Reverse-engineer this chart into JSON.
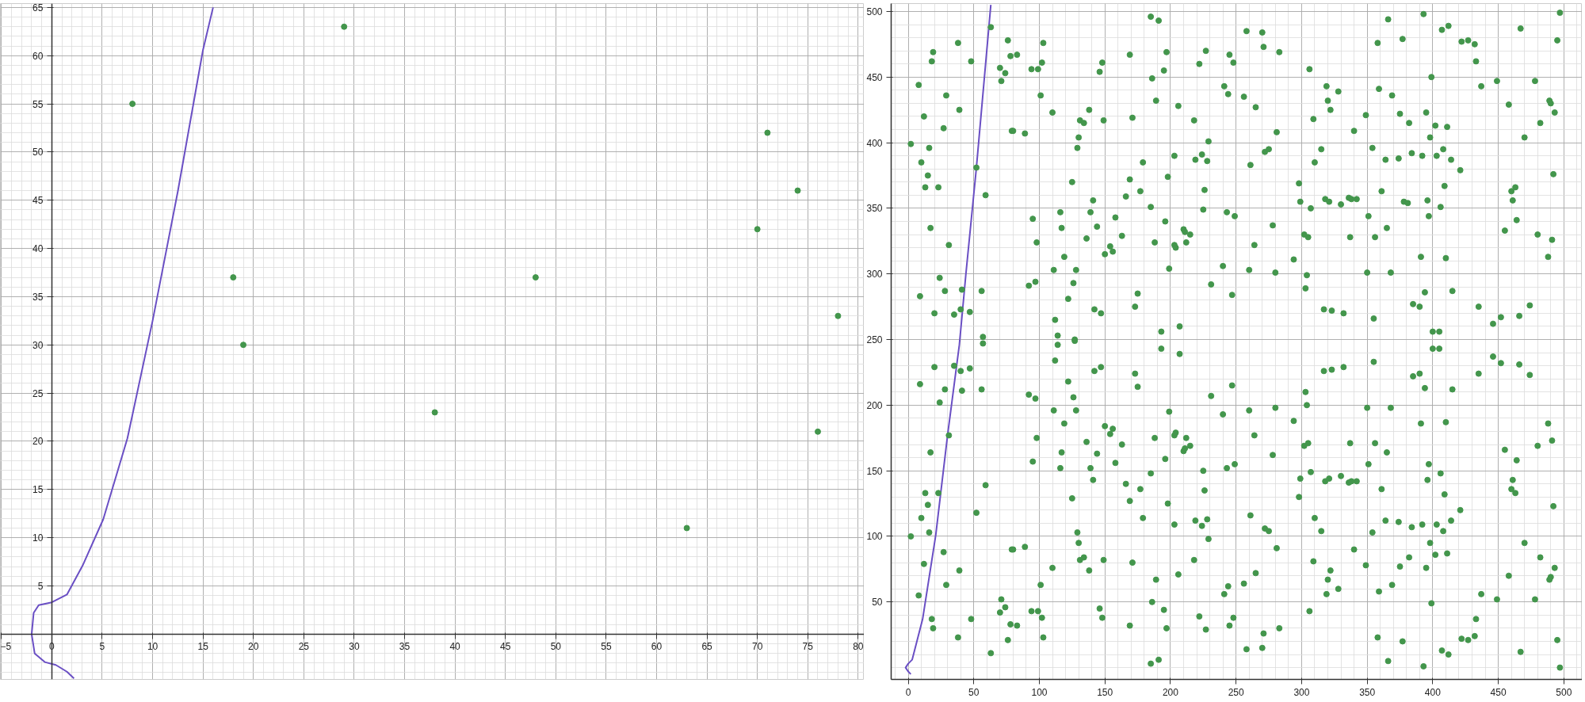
{
  "chart_data": [
    {
      "type": "scatter",
      "xlim": [
        -5.1,
        80.6
      ],
      "ylim": [
        -4.7,
        65.4
      ],
      "xticks": [
        -5,
        0,
        5,
        10,
        15,
        20,
        25,
        30,
        35,
        40,
        45,
        50,
        55,
        60,
        65,
        70,
        75,
        80
      ],
      "yticks": [
        5,
        10,
        15,
        20,
        25,
        30,
        35,
        40,
        45,
        50,
        55,
        60,
        65
      ],
      "grid": true,
      "series": [
        {
          "marker": "circle",
          "color": "#43964c",
          "x": [
            8,
            18,
            19,
            29,
            38,
            48,
            63,
            70,
            71,
            74,
            76,
            78
          ],
          "values": [
            55,
            37,
            30,
            63,
            23,
            37,
            11,
            42,
            52,
            46,
            21,
            33
          ]
        },
        {
          "type": "line",
          "color": "#6a4fc4",
          "x": [
            2.2,
            1.5,
            0.4,
            -0.7,
            -1.7,
            -2.0,
            -1.8,
            -1.3,
            0,
            1.5,
            3.1,
            5.1,
            7.5,
            10.0,
            12.5,
            15.0,
            16.0
          ],
          "values": [
            -4.6,
            -3.9,
            -3.2,
            -2.9,
            -2.0,
            0,
            2.2,
            3.0,
            3.3,
            4.1,
            7.2,
            11.9,
            20.3,
            32.5,
            45.9,
            60.6,
            65.0
          ]
        }
      ]
    },
    {
      "type": "scatter",
      "xlim": [
        -13,
        514
      ],
      "ylim": [
        -9,
        506
      ],
      "xticks": [
        0,
        50,
        100,
        150,
        200,
        250,
        300,
        350,
        400,
        450,
        500
      ],
      "yticks": [
        50,
        100,
        150,
        200,
        250,
        300,
        350,
        400,
        450,
        500
      ],
      "grid": true,
      "series": [
        {
          "marker": "circle",
          "color": "#43964c",
          "x": [
            2,
            8,
            10,
            12,
            15,
            16,
            13,
            17,
            18,
            19,
            9,
            20,
            23,
            24,
            27,
            28,
            29,
            31,
            35,
            38,
            39,
            40,
            41,
            47,
            48,
            52,
            56,
            57,
            57,
            59,
            63,
            70,
            71,
            74,
            76,
            78,
            79,
            80,
            83,
            89,
            92,
            94,
            95,
            97,
            98,
            99,
            101,
            102,
            103,
            110,
            111,
            112,
            114,
            114,
            116,
            117,
            119,
            122,
            125,
            126,
            127,
            127,
            128,
            129,
            130,
            131,
            134,
            136,
            138,
            139,
            141,
            142,
            144,
            146,
            147,
            148,
            149,
            150,
            154,
            156,
            158,
            163,
            166,
            169,
            169,
            171,
            173,
            175,
            177,
            179,
            185,
            185,
            186,
            188,
            189,
            191,
            193,
            195,
            196,
            197,
            198,
            199,
            203,
            203,
            204,
            206,
            207,
            210,
            211,
            212,
            215,
            218,
            219,
            222,
            224,
            225,
            226,
            227,
            228,
            229,
            231,
            240,
            241,
            243,
            244,
            245,
            247,
            248,
            249,
            258,
            270,
            271,
            283,
            256,
            265,
            281,
            306,
            272,
            275,
            261,
            315,
            310,
            319,
            320,
            322,
            328,
            309,
            340,
            298,
            299,
            307,
            318,
            321,
            330,
            336,
            338,
            342,
            278,
            264,
            302,
            305,
            294,
            260,
            280,
            304,
            303,
            317,
            323,
            332,
            355,
            337,
            349,
            358,
            366,
            377,
            359,
            369,
            375,
            382,
            354,
            364,
            374,
            384,
            392,
            361,
            351,
            365,
            356,
            378,
            381,
            350,
            368,
            393,
            407,
            412,
            399,
            395,
            402,
            411,
            398,
            403,
            408,
            414,
            421,
            409,
            396,
            406,
            397,
            391,
            410,
            394,
            415,
            385,
            390,
            400,
            405,
            422,
            427,
            432,
            433,
            437,
            449,
            467,
            478,
            497,
            495,
            458,
            489,
            490,
            493,
            482,
            470,
            492,
            460,
            463,
            461,
            464,
            455,
            480,
            491,
            488,
            435,
            474,
            446,
            452,
            466,
            2,
            8,
            9,
            10,
            12,
            13,
            15,
            16,
            17,
            18,
            19,
            20,
            23,
            24,
            27,
            28,
            29,
            31,
            35,
            38,
            39,
            40,
            41,
            47,
            48,
            52,
            56,
            59,
            63,
            70,
            71,
            74,
            76,
            78,
            79,
            80,
            83,
            89,
            92,
            94,
            95,
            97,
            98,
            99,
            101,
            102,
            103,
            110,
            111,
            112,
            116,
            117,
            119,
            122,
            125,
            126,
            128,
            129,
            130,
            131,
            134,
            136,
            138,
            139,
            141,
            142,
            144,
            146,
            147,
            148,
            149,
            150,
            154,
            156,
            158,
            163,
            166,
            169,
            169,
            171,
            173,
            175,
            177,
            179,
            185,
            185,
            186,
            188,
            189,
            191,
            193,
            195,
            196,
            197,
            198,
            199,
            203,
            203,
            204,
            206,
            207,
            210,
            211,
            212,
            215,
            218,
            219,
            222,
            224,
            225,
            226,
            227,
            228,
            229,
            231,
            240,
            241,
            243,
            244,
            245,
            247,
            248,
            249,
            260,
            280,
            264,
            278,
            294,
            303,
            304,
            302,
            305,
            307,
            299,
            298,
            261,
            272,
            275,
            281,
            265,
            256,
            258,
            270,
            271,
            283,
            306,
            309,
            310,
            315,
            317,
            323,
            332,
            318,
            321,
            330,
            336,
            338,
            342,
            322,
            320,
            319,
            328,
            340,
            337,
            355,
            350,
            368,
            356,
            365,
            351,
            361,
            354,
            364,
            374,
            384,
            392,
            349,
            359,
            369,
            375,
            382,
            358,
            366,
            377,
            385,
            390,
            394,
            400,
            405,
            391,
            410,
            415,
            397,
            406,
            396,
            409,
            421,
            414,
            403,
            408,
            398,
            402,
            411,
            395,
            399,
            393,
            407,
            412,
            435,
            446,
            452,
            466,
            474,
            488,
            491,
            480,
            455,
            464,
            461,
            460,
            463,
            492,
            470,
            482,
            493,
            458,
            489,
            490,
            437,
            449,
            478,
            433,
            432,
            422,
            427,
            467,
            495,
            497
          ],
          "values": [
            399,
            444,
            385,
            420,
            375,
            396,
            366,
            335,
            462,
            469,
            283,
            270,
            366,
            297,
            411,
            287,
            436,
            322,
            269,
            476,
            425,
            273,
            288,
            271,
            462,
            381,
            287,
            252,
            247,
            360,
            488,
            457,
            447,
            453,
            478,
            466,
            409,
            409,
            467,
            407,
            291,
            456,
            342,
            294,
            324,
            456,
            436,
            461,
            476,
            423,
            303,
            265,
            253,
            246,
            347,
            335,
            313,
            281,
            370,
            293,
            250,
            249,
            303,
            396,
            404,
            417,
            415,
            327,
            425,
            347,
            356,
            273,
            336,
            454,
            270,
            461,
            417,
            315,
            321,
            317,
            343,
            329,
            359,
            372,
            467,
            419,
            275,
            285,
            363,
            385,
            496,
            351,
            449,
            324,
            432,
            493,
            256,
            455,
            340,
            469,
            374,
            304,
            390,
            322,
            320,
            428,
            260,
            334,
            332,
            324,
            330,
            417,
            387,
            460,
            391,
            349,
            364,
            470,
            386,
            401,
            292,
            306,
            443,
            347,
            437,
            467,
            284,
            461,
            344,
            485,
            484,
            473,
            469,
            435,
            427,
            408,
            456,
            393,
            395,
            383,
            395,
            385,
            443,
            432,
            425,
            439,
            418,
            409,
            369,
            355,
            350,
            357,
            355,
            353,
            358,
            357,
            357,
            337,
            322,
            330,
            328,
            311,
            303,
            301,
            299,
            289,
            273,
            272,
            270,
            266,
            328,
            421,
            476,
            494,
            479,
            441,
            436,
            422,
            415,
            396,
            387,
            388,
            392,
            390,
            363,
            344,
            335,
            328,
            355,
            354,
            301,
            301,
            498,
            486,
            489,
            450,
            423,
            413,
            412,
            404,
            390,
            395,
            387,
            379,
            367,
            356,
            351,
            344,
            313,
            312,
            286,
            287,
            277,
            275,
            256,
            256,
            477,
            478,
            475,
            462,
            443,
            447,
            487,
            447,
            499,
            478,
            429,
            432,
            430,
            423,
            415,
            404,
            376,
            363,
            366,
            356,
            341,
            333,
            330,
            326,
            313,
            275,
            276,
            262,
            267,
            268,
            100,
            55,
            216,
            114,
            79,
            133,
            124,
            103,
            164,
            37,
            30,
            229,
            133,
            202,
            88,
            212,
            63,
            177,
            230,
            23,
            74,
            226,
            211,
            228,
            37,
            118,
            212,
            139,
            11,
            42,
            52,
            46,
            21,
            33,
            90,
            90,
            32,
            92,
            208,
            43,
            157,
            205,
            175,
            43,
            63,
            38,
            23,
            76,
            196,
            234,
            152,
            164,
            186,
            218,
            129,
            206,
            196,
            103,
            95,
            82,
            84,
            172,
            74,
            152,
            143,
            226,
            163,
            45,
            229,
            38,
            82,
            184,
            178,
            182,
            156,
            170,
            140,
            127,
            32,
            80,
            224,
            214,
            136,
            114,
            3,
            148,
            50,
            175,
            67,
            6,
            243,
            44,
            159,
            30,
            125,
            195,
            109,
            177,
            179,
            71,
            239,
            165,
            167,
            175,
            169,
            82,
            112,
            39,
            108,
            150,
            135,
            29,
            113,
            98,
            207,
            193,
            56,
            152,
            62,
            32,
            215,
            38,
            155,
            196,
            198,
            177,
            162,
            188,
            210,
            200,
            169,
            171,
            149,
            144,
            130,
            116,
            106,
            104,
            91,
            72,
            64,
            14,
            15,
            26,
            30,
            43,
            81,
            114,
            104,
            226,
            227,
            229,
            142,
            144,
            146,
            141,
            142,
            142,
            74,
            67,
            56,
            60,
            90,
            171,
            233,
            198,
            198,
            171,
            164,
            155,
            136,
            103,
            112,
            111,
            107,
            109,
            78,
            58,
            63,
            77,
            84,
            23,
            5,
            20,
            222,
            224,
            213,
            243,
            243,
            186,
            187,
            212,
            155,
            148,
            143,
            132,
            120,
            112,
            109,
            104,
            95,
            86,
            87,
            76,
            49,
            1,
            13,
            10,
            224,
            237,
            232,
            231,
            223,
            186,
            173,
            169,
            166,
            158,
            143,
            136,
            133,
            123,
            95,
            84,
            76,
            70,
            67,
            69,
            56,
            52,
            52,
            37,
            24,
            22,
            21,
            12,
            21,
            0
          ]
        },
        {
          "type": "line",
          "color": "#6a4fc4",
          "x": [
            2,
            0,
            -2,
            0,
            3,
            11,
            21,
            30,
            39,
            44,
            52,
            63
          ],
          "values": [
            -5,
            -3,
            0,
            3,
            6,
            37,
            101,
            177,
            246,
            300,
            381,
            505
          ]
        }
      ]
    }
  ]
}
